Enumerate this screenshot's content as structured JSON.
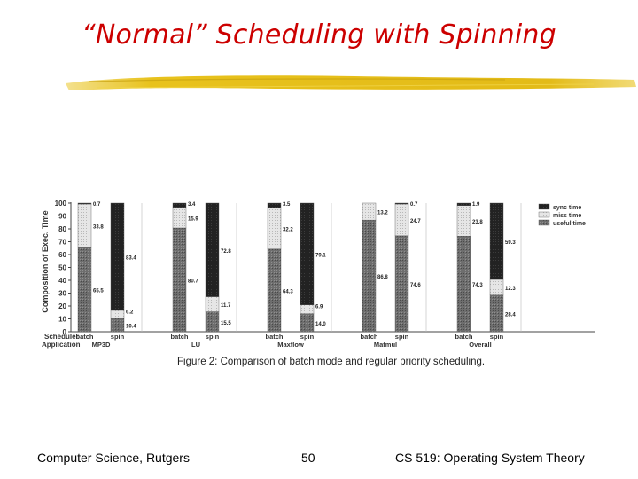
{
  "slide": {
    "title": "“Normal” Scheduling with Spinning",
    "footer_left": "Computer Science, Rutgers",
    "page_number": "50",
    "footer_right": "CS 519: Operating System Theory"
  },
  "colors": {
    "title": "#cc0000",
    "accent_brush": "#e8c21c",
    "sync": "#222222",
    "miss": "#dddddd",
    "useful": "#666666"
  },
  "chart_data": {
    "type": "bar",
    "stacked": true,
    "caption": "Figure 2:  Comparison of batch mode and regular priority scheduling.",
    "ylabel": "Composition of Exec. Time",
    "ylim": [
      0,
      100
    ],
    "yticks": [
      "0",
      "10",
      "20",
      "30",
      "40",
      "50",
      "60",
      "70",
      "80",
      "90",
      "100"
    ],
    "row_labels": [
      "Scheduler",
      "Application"
    ],
    "groups": [
      {
        "name": "MP3D",
        "bars": [
          {
            "label": "batch",
            "useful": 65.5,
            "miss": 33.8,
            "sync": 0.7,
            "labels": {
              "useful": "65.5",
              "miss": "33.8",
              "sync": "0.7"
            }
          },
          {
            "label": "spin",
            "useful": 10.4,
            "miss": 6.2,
            "sync": 83.4,
            "labels": {
              "useful": "10.4",
              "miss": "6.2",
              "sync": "83.4"
            }
          }
        ]
      },
      {
        "name": "LU",
        "bars": [
          {
            "label": "batch",
            "useful": 80.7,
            "miss": 15.9,
            "sync": 3.4,
            "labels": {
              "useful": "80.7",
              "miss": "15.9",
              "sync": "3.4"
            }
          },
          {
            "label": "spin",
            "useful": 15.5,
            "miss": 11.7,
            "sync": 72.8,
            "labels": {
              "useful": "15.5",
              "miss": "11.7",
              "sync": "72.8"
            }
          }
        ]
      },
      {
        "name": "Maxflow",
        "bars": [
          {
            "label": "batch",
            "useful": 64.3,
            "miss": 32.2,
            "sync": 3.5,
            "labels": {
              "useful": "64.3",
              "miss": "32.2",
              "sync": "3.5"
            }
          },
          {
            "label": "spin",
            "useful": 14.0,
            "miss": 6.9,
            "sync": 79.1,
            "labels": {
              "useful": "14.0",
              "miss": "6.9",
              "sync": "79.1"
            }
          }
        ]
      },
      {
        "name": "Matmul",
        "bars": [
          {
            "label": "batch",
            "useful": 86.8,
            "miss": 13.2,
            "sync": 0.0,
            "labels": {
              "useful": "86.8",
              "miss": "13.2",
              "sync": ""
            }
          },
          {
            "label": "spin",
            "useful": 74.6,
            "miss": 24.7,
            "sync": 0.7,
            "labels": {
              "useful": "74.6",
              "miss": "24.7",
              "sync": "0.7"
            }
          }
        ]
      },
      {
        "name": "Overall",
        "bars": [
          {
            "label": "batch",
            "useful": 74.3,
            "miss": 23.8,
            "sync": 1.9,
            "labels": {
              "useful": "74.3",
              "miss": "23.8",
              "sync": "1.9"
            }
          },
          {
            "label": "spin",
            "useful": 28.4,
            "miss": 12.3,
            "sync": 59.3,
            "labels": {
              "useful": "28.4",
              "miss": "12.3",
              "sync": "59.3"
            }
          }
        ]
      }
    ],
    "legend": [
      {
        "key": "sync",
        "label": "sync time"
      },
      {
        "key": "miss",
        "label": "miss time"
      },
      {
        "key": "useful",
        "label": "useful time"
      }
    ],
    "legend_position": "top-right"
  }
}
